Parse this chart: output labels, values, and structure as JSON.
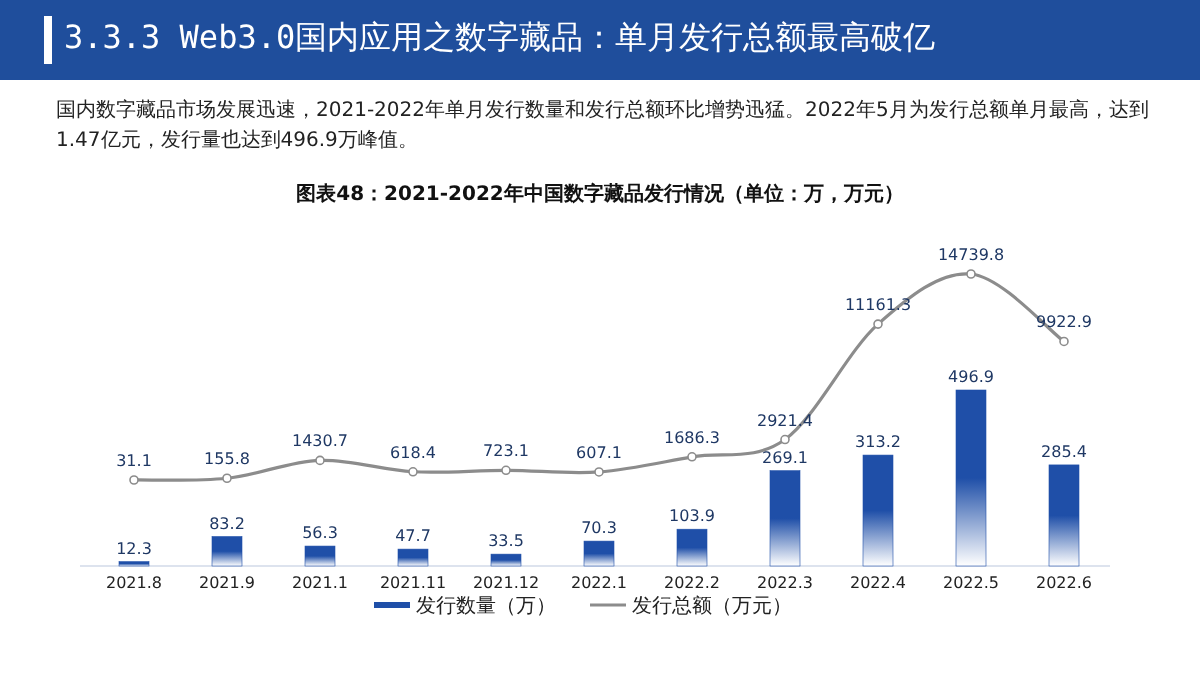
{
  "chart_data": {
    "type": "bar",
    "title": "3.3.3 Web3.0国内应用之数字藏品：单月发行总额最高破亿",
    "subtitle": "国内数字藏品市场发展迅速，2021-2022年单月发行数量和发行总额环比增势迅猛。2022年5月为发行总额单月最高，达到1.47亿元，发行量也达到496.9万峰值。",
    "annotations": [
      "图表48：2021-2022年中国数字藏品发行情况（单位：万，万元）"
    ],
    "categories": [
      "2021.8",
      "2021.9",
      "2021.1",
      "2021.11",
      "2021.12",
      "2022.1",
      "2022.2",
      "2022.3",
      "2022.4",
      "2022.5",
      "2022.6"
    ],
    "data_labels": true,
    "legend": "bottom",
    "series": [
      {
        "name": "发行数量（万）",
        "color": "#1f4fa8",
        "values": [
          12.3,
          83.2,
          56.3,
          47.7,
          33.5,
          70.3,
          103.9,
          269.1,
          313.2,
          496.9,
          285.4
        ]
      },
      {
        "name": "发行总额（万元）",
        "type": "line",
        "axis": "y2",
        "marker": "circle",
        "color": "#8c8c8c",
        "values": [
          31.1,
          155.8,
          1430.7,
          618.4,
          723.1,
          607.1,
          1686.3,
          2921.4,
          11161.3,
          14739.8,
          9922.9
        ]
      }
    ]
  }
}
